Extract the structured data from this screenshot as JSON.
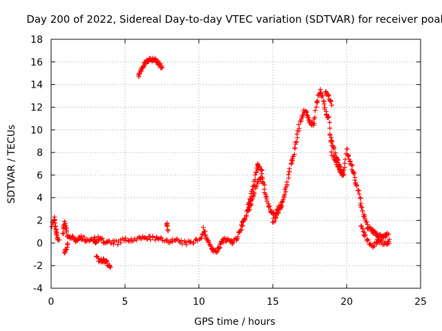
{
  "chart_data": {
    "type": "scatter",
    "title": "Day 200 of 2022, Sidereal Day-to-day VTEC variation (SDTVAR) for receiver poal",
    "xlabel": "GPS time / hours",
    "ylabel": "SDTVAR / TECUs",
    "xlim": [
      0,
      25
    ],
    "ylim": [
      -4,
      18
    ],
    "xticks": [
      0,
      5,
      10,
      15,
      20,
      25
    ],
    "yticks": [
      -4,
      -2,
      0,
      2,
      4,
      6,
      8,
      10,
      12,
      14,
      16,
      18
    ],
    "grid": true,
    "marker": "+",
    "color": "#ff0000",
    "series": [
      {
        "name": "SDTVAR",
        "segments": [
          {
            "x": [
              0.1,
              0.2,
              0.3,
              0.4,
              0.5
            ],
            "y": [
              1.6,
              2.2,
              1.3,
              0.6,
              0.1
            ]
          },
          {
            "x": [
              0.8,
              0.9,
              1.0,
              1.2,
              1.4,
              1.6,
              1.8,
              2.0,
              2.3,
              2.6,
              2.9,
              3.0
            ],
            "y": [
              0.8,
              1.8,
              1.2,
              0.4,
              0.6,
              0.2,
              0.4,
              0.5,
              0.3,
              0.2,
              0.4,
              0.0
            ]
          },
          {
            "x": [
              0.9,
              1.0,
              1.1
            ],
            "y": [
              -0.9,
              -0.6,
              0.0
            ]
          },
          {
            "x": [
              3.1,
              3.3,
              3.5,
              3.7,
              3.9,
              4.0
            ],
            "y": [
              -1.3,
              -1.6,
              -1.5,
              -1.7,
              -1.9,
              -2.1
            ]
          },
          {
            "x": [
              3.0,
              3.3,
              3.6,
              4.0,
              4.5,
              5.0,
              5.5,
              6.0,
              6.5,
              7.0,
              7.5,
              8.0,
              8.5,
              9.0,
              9.5,
              10.0,
              10.3
            ],
            "y": [
              0.2,
              0.5,
              0.0,
              0.1,
              0.0,
              0.3,
              0.2,
              0.4,
              0.5,
              0.4,
              0.3,
              0.2,
              0.2,
              0.0,
              0.0,
              0.4,
              0.8
            ]
          },
          {
            "x": [
              7.8,
              7.9
            ],
            "y": [
              1.8,
              1.2
            ]
          },
          {
            "x": [
              5.9,
              6.1,
              6.3,
              6.5,
              6.7,
              6.9,
              7.1,
              7.3,
              7.5
            ],
            "y": [
              14.8,
              15.3,
              15.8,
              16.0,
              16.2,
              16.2,
              16.1,
              15.8,
              15.5
            ]
          },
          {
            "x": [
              10.3,
              10.5,
              10.7,
              10.9,
              11.1,
              11.3,
              11.5,
              11.7,
              12.0,
              12.3,
              12.6,
              12.9
            ],
            "y": [
              1.2,
              0.5,
              0.0,
              -0.5,
              -0.8,
              -0.6,
              0.0,
              0.4,
              0.2,
              0.0,
              0.5,
              1.2
            ]
          },
          {
            "x": [
              12.9,
              13.0,
              13.2,
              13.4,
              13.5,
              13.7,
              13.9,
              14.0,
              14.2,
              14.4,
              14.6,
              14.8,
              15.0,
              15.2,
              15.4,
              15.6,
              15.8,
              16.0,
              16.2,
              16.4,
              16.6,
              16.8,
              17.0,
              17.2,
              17.4,
              17.6,
              17.8,
              18.0,
              18.2,
              18.4,
              18.6,
              18.8,
              19.0,
              19.2,
              19.4,
              19.6,
              19.8,
              20.0,
              20.2,
              20.4,
              20.6,
              20.8,
              21.0,
              21.2,
              21.4,
              21.6,
              21.8,
              22.0,
              22.2,
              22.4,
              22.6,
              22.8
            ],
            "y": [
              1.5,
              2.0,
              2.5,
              3.5,
              4.0,
              5.0,
              6.3,
              6.9,
              6.5,
              5.0,
              3.8,
              3.0,
              2.6,
              2.5,
              3.0,
              3.5,
              4.2,
              5.5,
              6.8,
              7.8,
              9.0,
              10.5,
              11.2,
              11.8,
              11.0,
              10.5,
              10.6,
              12.6,
              13.5,
              12.7,
              11.5,
              11.0,
              8.0,
              7.2,
              6.8,
              6.2,
              6.0,
              8.3,
              7.2,
              6.5,
              5.5,
              4.5,
              3.2,
              2.2,
              1.5,
              1.2,
              1.0,
              0.8,
              0.6,
              0.5,
              0.7,
              0.8
            ]
          },
          {
            "x": [
              13.3,
              13.5,
              13.7,
              13.9,
              14.1,
              14.3
            ],
            "y": [
              2.8,
              3.3,
              4.2,
              5.2,
              5.8,
              5.5
            ]
          },
          {
            "x": [
              15.0,
              15.2,
              15.4,
              15.6
            ],
            "y": [
              1.9,
              2.3,
              2.8,
              3.3
            ]
          },
          {
            "x": [
              18.6,
              18.8,
              19.0
            ],
            "y": [
              13.3,
              12.9,
              12.3
            ]
          },
          {
            "x": [
              18.9,
              19.1,
              19.3,
              19.5,
              19.7
            ],
            "y": [
              9.5,
              8.5,
              7.6,
              6.8,
              6.2
            ]
          },
          {
            "x": [
              21.0,
              21.2,
              21.5,
              21.8,
              22.1,
              22.4,
              22.7,
              22.9
            ],
            "y": [
              1.5,
              0.8,
              0.0,
              -0.2,
              0.2,
              0.0,
              -0.1,
              0.2
            ]
          }
        ]
      }
    ]
  }
}
